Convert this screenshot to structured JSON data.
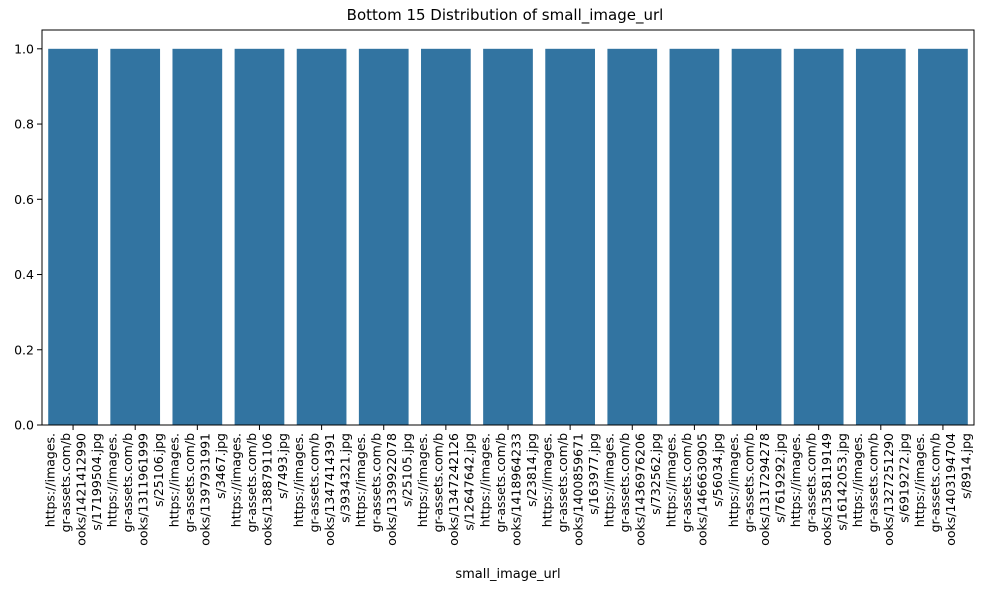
{
  "chart_data": {
    "type": "bar",
    "title": "Bottom 15 Distribution of small_image_url",
    "xlabel": "small_image_url",
    "ylabel": "",
    "ylim": [
      0,
      1.05
    ],
    "yticks": [
      "0.0",
      "0.2",
      "0.4",
      "0.6",
      "0.8",
      "1.0"
    ],
    "bar_color": "#3274a1",
    "grid": false,
    "categories": [
      "https://images.gr-assets.com/books/1421412990s/17199504.jpg",
      "https://images.gr-assets.com/books/1311961999s/25106.jpg",
      "https://images.gr-assets.com/books/1397931991s/3467.jpg",
      "https://images.gr-assets.com/books/1388791106s/7493.jpg",
      "https://images.gr-assets.com/books/1347414391s/3934321.jpg",
      "https://images.gr-assets.com/books/1339922078s/25105.jpg",
      "https://images.gr-assets.com/books/1347242126s/12647642.jpg",
      "https://images.gr-assets.com/books/1418964233s/23814.jpg",
      "https://images.gr-assets.com/books/1400859671s/163977.jpg",
      "https://images.gr-assets.com/books/1436976206s/732562.jpg",
      "https://images.gr-assets.com/books/1466630905s/56034.jpg",
      "https://images.gr-assets.com/books/1317294278s/7619292.jpg",
      "https://images.gr-assets.com/books/1358119149s/16142053.jpg",
      "https://images.gr-assets.com/books/1327251290s/6919272.jpg",
      "https://images.gr-assets.com/books/1403194704s/8914.jpg"
    ],
    "tick_label_lines": [
      [
        "https://images.",
        "gr-assets.com/b",
        "ooks/1421412990",
        "s/17199504.jpg"
      ],
      [
        "https://images.",
        "gr-assets.com/b",
        "ooks/1311961999",
        "s/25106.jpg"
      ],
      [
        "https://images.",
        "gr-assets.com/b",
        "ooks/1397931991",
        "s/3467.jpg"
      ],
      [
        "https://images.",
        "gr-assets.com/b",
        "ooks/1388791106",
        "s/7493.jpg"
      ],
      [
        "https://images.",
        "gr-assets.com/b",
        "ooks/1347414391",
        "s/3934321.jpg"
      ],
      [
        "https://images.",
        "gr-assets.com/b",
        "ooks/1339922078",
        "s/25105.jpg"
      ],
      [
        "https://images.",
        "gr-assets.com/b",
        "ooks/1347242126",
        "s/12647642.jpg"
      ],
      [
        "https://images.",
        "gr-assets.com/b",
        "ooks/1418964233",
        "s/23814.jpg"
      ],
      [
        "https://images.",
        "gr-assets.com/b",
        "ooks/1400859671",
        "s/163977.jpg"
      ],
      [
        "https://images.",
        "gr-assets.com/b",
        "ooks/1436976206",
        "s/732562.jpg"
      ],
      [
        "https://images.",
        "gr-assets.com/b",
        "ooks/1466630905",
        "s/56034.jpg"
      ],
      [
        "https://images.",
        "gr-assets.com/b",
        "ooks/1317294278",
        "s/7619292.jpg"
      ],
      [
        "https://images.",
        "gr-assets.com/b",
        "ooks/1358119149",
        "s/16142053.jpg"
      ],
      [
        "https://images.",
        "gr-assets.com/b",
        "ooks/1327251290",
        "s/6919272.jpg"
      ],
      [
        "https://images.",
        "gr-assets.com/b",
        "ooks/1403194704",
        "s/8914.jpg"
      ]
    ],
    "values": [
      1,
      1,
      1,
      1,
      1,
      1,
      1,
      1,
      1,
      1,
      1,
      1,
      1,
      1,
      1
    ]
  }
}
